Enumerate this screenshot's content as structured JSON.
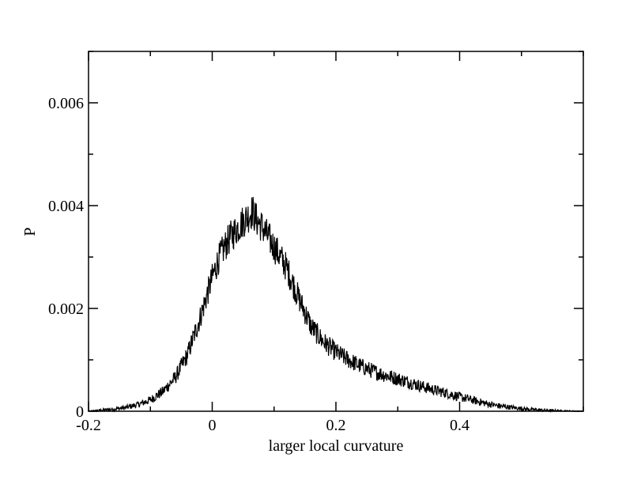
{
  "chart_data": {
    "type": "line",
    "title": "",
    "xlabel": "larger local curvature",
    "ylabel": "P",
    "xlim": [
      -0.2,
      0.6
    ],
    "ylim": [
      0,
      0.007
    ],
    "x_ticks": [
      {
        "value": -0.2,
        "label": "-0.2"
      },
      {
        "value": 0,
        "label": "0"
      },
      {
        "value": 0.2,
        "label": "0.2"
      },
      {
        "value": 0.4,
        "label": "0.4"
      }
    ],
    "x_minor_step": 0.1,
    "y_ticks": [
      {
        "value": 0,
        "label": "0"
      },
      {
        "value": 0.002,
        "label": "0.002"
      },
      {
        "value": 0.004,
        "label": "0.004"
      },
      {
        "value": 0.006,
        "label": "0.006"
      }
    ],
    "y_minor_step": 0.001,
    "grid": false,
    "legend": "none",
    "series": [
      {
        "x": [
          -0.2,
          -0.18,
          -0.16,
          -0.14,
          -0.12,
          -0.1,
          -0.08,
          -0.06,
          -0.04,
          -0.02,
          0.0,
          0.01,
          0.02,
          0.03,
          0.04,
          0.05,
          0.06,
          0.065,
          0.07,
          0.08,
          0.09,
          0.1,
          0.12,
          0.14,
          0.16,
          0.18,
          0.2,
          0.22,
          0.24,
          0.26,
          0.28,
          0.3,
          0.32,
          0.34,
          0.36,
          0.38,
          0.4,
          0.42,
          0.44,
          0.46,
          0.48,
          0.5,
          0.52,
          0.54,
          0.56,
          0.58,
          0.6
        ],
        "y": [
          0.0,
          2e-05,
          4e-05,
          7e-05,
          0.00013,
          0.00022,
          0.00038,
          0.00065,
          0.0011,
          0.0018,
          0.0026,
          0.00295,
          0.0032,
          0.0034,
          0.00355,
          0.0037,
          0.00382,
          0.0039,
          0.00375,
          0.0036,
          0.0034,
          0.0032,
          0.0028,
          0.0022,
          0.00165,
          0.00135,
          0.00115,
          0.001,
          0.00088,
          0.00078,
          0.0007,
          0.00063,
          0.00056,
          0.00048,
          0.00041,
          0.00035,
          0.00028,
          0.00022,
          0.00016,
          0.00011,
          8e-05,
          5e-05,
          3e-05,
          2e-05,
          1e-05,
          5e-06,
          0.0
        ],
        "color": "#000000"
      }
    ]
  }
}
